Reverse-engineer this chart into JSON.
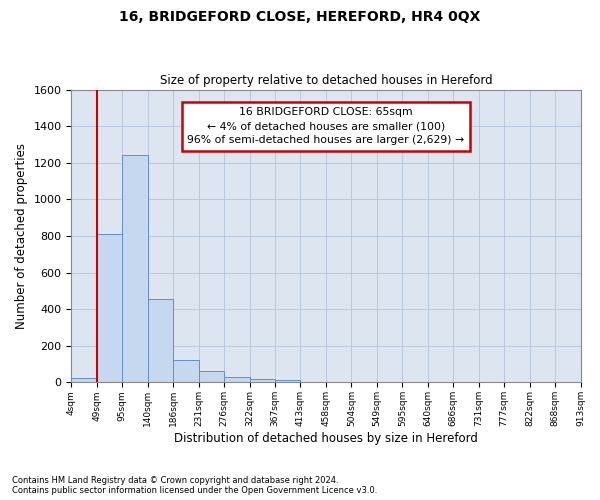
{
  "title": "16, BRIDGEFORD CLOSE, HEREFORD, HR4 0QX",
  "subtitle": "Size of property relative to detached houses in Hereford",
  "xlabel": "Distribution of detached houses by size in Hereford",
  "ylabel": "Number of detached properties",
  "footer_line1": "Contains HM Land Registry data © Crown copyright and database right 2024.",
  "footer_line2": "Contains public sector information licensed under the Open Government Licence v3.0.",
  "bar_color": "#c5d8f0",
  "bar_edge_color": "#6090c8",
  "grid_color": "#b8c8dc",
  "background_color": "#dde6f0",
  "annotation_box_edgecolor": "#cc0000",
  "vline_color": "#cc0000",
  "bin_labels": [
    "4sqm",
    "49sqm",
    "95sqm",
    "140sqm",
    "186sqm",
    "231sqm",
    "276sqm",
    "322sqm",
    "367sqm",
    "413sqm",
    "458sqm",
    "504sqm",
    "549sqm",
    "595sqm",
    "640sqm",
    "686sqm",
    "731sqm",
    "777sqm",
    "822sqm",
    "868sqm",
    "913sqm"
  ],
  "bar_heights": [
    25,
    810,
    1240,
    455,
    125,
    60,
    28,
    20,
    14,
    0,
    0,
    0,
    0,
    0,
    0,
    0,
    0,
    0,
    0,
    0
  ],
  "ylim": [
    0,
    1600
  ],
  "yticks": [
    0,
    200,
    400,
    600,
    800,
    1000,
    1200,
    1400,
    1600
  ],
  "vline_x": 1.0,
  "annotation_line1": "16 BRIDGEFORD CLOSE: 65sqm",
  "annotation_line2": "← 4% of detached houses are smaller (100)",
  "annotation_line3": "96% of semi-detached houses are larger (2,629) →",
  "num_bars": 20
}
